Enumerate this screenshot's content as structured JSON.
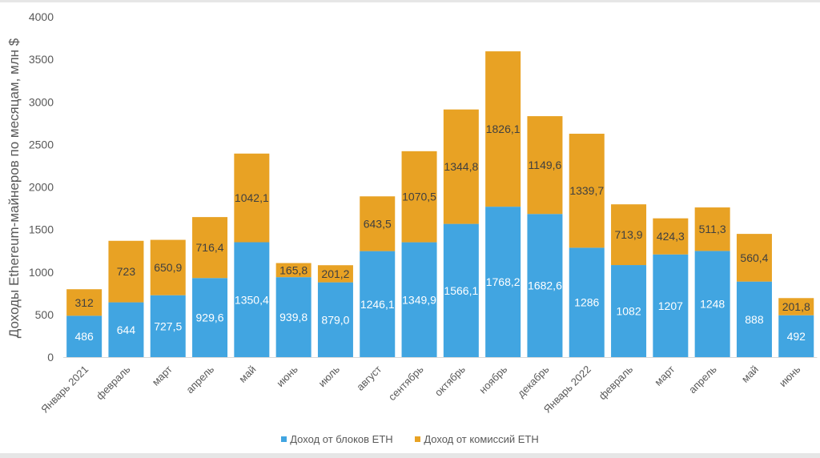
{
  "chart_data": {
    "type": "bar",
    "stacked": true,
    "title": "",
    "xlabel": "",
    "ylabel": "Доходы Ethereum-майнеров по месяцам, млн $",
    "ylim": [
      0,
      4000
    ],
    "yticks": [
      "0",
      "500",
      "1000",
      "1500",
      "2000",
      "2500",
      "3000",
      "3500",
      "4000"
    ],
    "grid": false,
    "legend_position": "bottom",
    "categories": [
      "Январь 2021",
      "февраль",
      "март",
      "апрель",
      "май",
      "июнь",
      "июль",
      "август",
      "сентябрь",
      "октябрь",
      "ноябрь",
      "декабрь",
      "Январь 2022",
      "февраль",
      "март",
      "апрель",
      "май",
      "июнь"
    ],
    "series": [
      {
        "name": "Доход от блоков ETH",
        "color": "#41a5e1",
        "values": [
          486,
          644,
          727.5,
          929.6,
          1350.4,
          939.8,
          879.0,
          1246.1,
          1349.9,
          1566.1,
          1768.2,
          1682.6,
          1286,
          1082,
          1207,
          1248,
          888,
          492
        ],
        "labels": [
          "486",
          "644",
          "727,5",
          "929,6",
          "1350,4",
          "939,8",
          "879,0",
          "1246,1",
          "1349,9",
          "1566,1",
          "1768,2",
          "1682,6",
          "1286",
          "1082",
          "1207",
          "1248",
          "888",
          "492"
        ]
      },
      {
        "name": "Доход от комиссий ETH",
        "color": "#e8a224",
        "values": [
          312,
          723,
          650.9,
          716.4,
          1042.1,
          165.8,
          201.2,
          643.5,
          1070.5,
          1344.8,
          1826.1,
          1149.6,
          1339.7,
          713.9,
          424.3,
          511.3,
          560.4,
          201.8
        ],
        "labels": [
          "312",
          "723",
          "650,9",
          "716,4",
          "1042,1",
          "165,8",
          "201,2",
          "643,5",
          "1070,5",
          "1344,8",
          "1826,1",
          "1149,6",
          "1339,7",
          "713,9",
          "424,3",
          "511,3",
          "560,4",
          "201,8"
        ]
      }
    ]
  }
}
